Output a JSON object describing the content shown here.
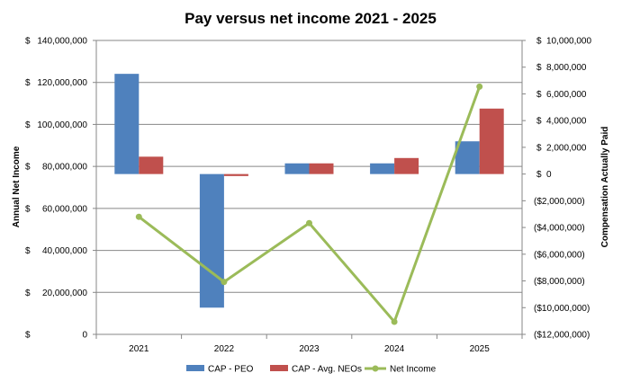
{
  "chart_data": {
    "type": "bar",
    "title": "Pay versus net income 2021 - 2025",
    "categories": [
      "2021",
      "2022",
      "2023",
      "2024",
      "2025"
    ],
    "y_left": {
      "label": "Annual Net Income",
      "range": [
        0,
        140000000
      ],
      "ticks": [
        0,
        20000000,
        40000000,
        60000000,
        80000000,
        100000000,
        120000000,
        140000000
      ],
      "tick_labels": [
        "$ 0",
        "$ 20,000,000",
        "$ 40,000,000",
        "$ 60,000,000",
        "$ 80,000,000",
        "$ 100,000,000",
        "$ 120,000,000",
        "$ 140,000,000"
      ]
    },
    "y_right": {
      "label": "Compensation Actually Paid",
      "range": [
        -12000000,
        10000000
      ],
      "ticks": [
        -12000000,
        -10000000,
        -8000000,
        -6000000,
        -4000000,
        -2000000,
        0,
        2000000,
        4000000,
        6000000,
        8000000,
        10000000
      ],
      "tick_labels": [
        "($12,000,000)",
        "($10,000,000)",
        "($8,000,000)",
        "($6,000,000)",
        "($4,000,000)",
        "($2,000,000)",
        "$ 0",
        "$ 2,000,000",
        "$ 4,000,000",
        "$ 6,000,000",
        "$ 8,000,000",
        "$ 10,000,000"
      ]
    },
    "series": [
      {
        "name": "CAP - PEO",
        "kind": "bar",
        "axis": "right",
        "color": "#4F81BD",
        "values": [
          7500000,
          -10000000,
          800000,
          800000,
          2450000
        ]
      },
      {
        "name": "CAP - Avg. NEOs",
        "kind": "bar",
        "axis": "right",
        "color": "#C0504D",
        "values": [
          1300000,
          -150000,
          800000,
          1200000,
          4900000
        ]
      },
      {
        "name": "Net Income",
        "kind": "line",
        "axis": "left",
        "color": "#9BBB59",
        "values": [
          56000000,
          25000000,
          53000000,
          6000000,
          118000000
        ]
      }
    ],
    "grid": true,
    "legend_position": "bottom"
  }
}
